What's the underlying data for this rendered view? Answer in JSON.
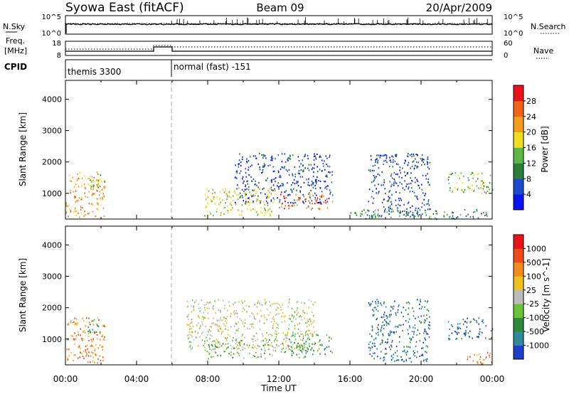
{
  "header": {
    "radar": "Syowa East (fitACF)",
    "beam": "Beam 09",
    "date": "20/Apr/2009"
  },
  "panels": {
    "nsky_label": "N.Sky",
    "nsky_ticks": [
      "10^5",
      "10^0"
    ],
    "nsearch_label": "N.Search",
    "nsearch_ticks": [
      "10^5",
      "10^0"
    ],
    "freq_label_1": "Freq.",
    "freq_label_2": "[MHz]",
    "freq_ticks": [
      "18",
      "8"
    ],
    "nave_label": "Nave",
    "nave_ticks": [
      "60",
      "0"
    ],
    "cpid_label": "CPID",
    "cpid_modes": [
      {
        "label": "themis 3300",
        "start_h": 0,
        "end_h": 6
      },
      {
        "label": "normal (fast) -151",
        "start_h": 6,
        "end_h": 24
      }
    ]
  },
  "chart_data": [
    {
      "type": "heatmap",
      "title": "",
      "xlabel": "Time UT",
      "ylabel": "Slant Range [km]",
      "xlim_hours": [
        0,
        24
      ],
      "ylim": [
        180,
        4600
      ],
      "x_ticks": [
        "00:00",
        "04:00",
        "08:00",
        "12:00",
        "16:00",
        "20:00",
        "00:00"
      ],
      "y_ticks": [
        1000,
        2000,
        3000,
        4000
      ],
      "colorbar": {
        "label": "Power [dB]",
        "ticks": [
          "4",
          "8",
          "12",
          "16",
          "20",
          "24",
          "28"
        ],
        "colors": [
          "#0a14f0",
          "#1a4bc8",
          "#2a7f3a",
          "#59b944",
          "#f1dd1f",
          "#f59b1e",
          "#f0651a",
          "#e8141a"
        ]
      },
      "echo_regions": [
        {
          "t0": 0.0,
          "t1": 2.2,
          "r0": 250,
          "r1": 1700,
          "level": 5
        },
        {
          "t0": 1.2,
          "t1": 2.0,
          "r0": 1200,
          "r1": 1700,
          "level": 3
        },
        {
          "t0": 7.8,
          "t1": 11.8,
          "r0": 300,
          "r1": 1200,
          "level": 4
        },
        {
          "t0": 9.5,
          "t1": 15.0,
          "r0": 700,
          "r1": 2300,
          "level": 1
        },
        {
          "t0": 12.0,
          "t1": 15.0,
          "r0": 500,
          "r1": 1000,
          "level": 6
        },
        {
          "t0": 17.0,
          "t1": 20.5,
          "r0": 300,
          "r1": 2300,
          "level": 1
        },
        {
          "t0": 21.5,
          "t1": 24.0,
          "r0": 1000,
          "r1": 1700,
          "level": 3
        },
        {
          "t0": 16.0,
          "t1": 24.0,
          "r0": 200,
          "r1": 500,
          "level": 2
        }
      ]
    },
    {
      "type": "heatmap",
      "title": "",
      "xlabel": "Time UT",
      "ylabel": "Slant Range [km]",
      "xlim_hours": [
        0,
        24
      ],
      "ylim": [
        180,
        4600
      ],
      "x_ticks": [
        "00:00",
        "04:00",
        "08:00",
        "12:00",
        "16:00",
        "20:00",
        "00:00"
      ],
      "y_ticks": [
        1000,
        2000,
        3000,
        4000
      ],
      "colorbar": {
        "label": "Velocity [m s^-1]",
        "ticks": [
          "1000",
          "500",
          "100",
          "25",
          "-25",
          "-100",
          "-500",
          "-1000"
        ],
        "colors": [
          "#1f3fc8",
          "#2f8a9a",
          "#2f8a3a",
          "#6ac43a",
          "#bdbdbd",
          "#f0c020",
          "#f58a1e",
          "#f04a1a",
          "#e8141a"
        ]
      },
      "echo_regions": [
        {
          "t0": 0.0,
          "t1": 2.2,
          "r0": 250,
          "r1": 1700,
          "level": 6
        },
        {
          "t0": 1.2,
          "t1": 2.0,
          "r0": 1200,
          "r1": 1700,
          "level": 2
        },
        {
          "t0": 6.8,
          "t1": 14.0,
          "r0": 700,
          "r1": 2300,
          "level": 4
        },
        {
          "t0": 7.8,
          "t1": 13.5,
          "r0": 400,
          "r1": 1000,
          "level": 3
        },
        {
          "t0": 12.5,
          "t1": 15.0,
          "r0": 500,
          "r1": 1200,
          "level": 2
        },
        {
          "t0": 17.0,
          "t1": 20.5,
          "r0": 300,
          "r1": 2300,
          "level": 1
        },
        {
          "t0": 21.5,
          "t1": 24.0,
          "r0": 1000,
          "r1": 1700,
          "level": 1
        },
        {
          "t0": 22.5,
          "t1": 24.0,
          "r0": 200,
          "r1": 600,
          "level": 6
        }
      ]
    }
  ]
}
